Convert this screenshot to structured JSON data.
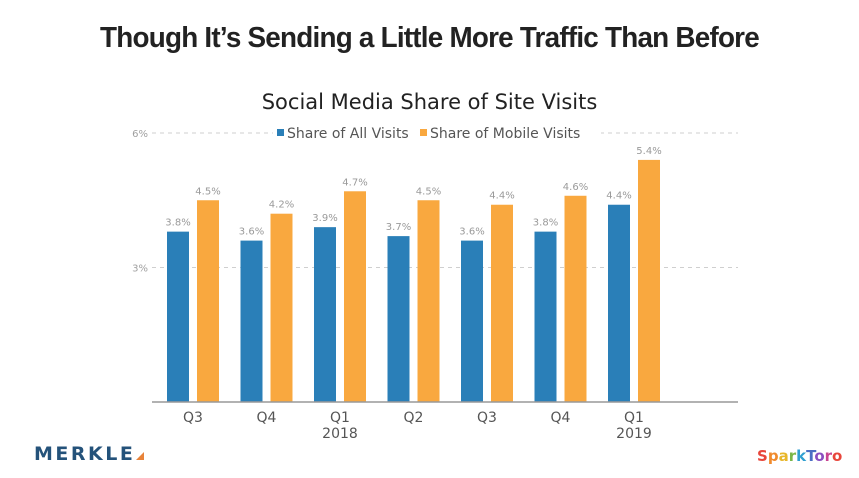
{
  "headline": "Though It’s Sending a Little More Traffic Than Before",
  "chart_data": {
    "type": "bar",
    "title": "Social Media Share of Site Visits",
    "xlabel": "",
    "ylabel": "",
    "ylim": [
      0,
      6
    ],
    "yticks": [
      {
        "value": 3,
        "label": "3%"
      },
      {
        "value": 6,
        "label": "6%"
      }
    ],
    "grid": true,
    "legend_position": "top-center",
    "categories": [
      {
        "label": "Q3",
        "sublabel": ""
      },
      {
        "label": "Q4",
        "sublabel": ""
      },
      {
        "label": "Q1",
        "sublabel": "2018"
      },
      {
        "label": "Q2",
        "sublabel": ""
      },
      {
        "label": "Q3",
        "sublabel": ""
      },
      {
        "label": "Q4",
        "sublabel": ""
      },
      {
        "label": "Q1",
        "sublabel": "2019"
      }
    ],
    "series": [
      {
        "name": "Share of All Visits",
        "color": "#2a7fb8",
        "values": [
          3.8,
          3.6,
          3.9,
          3.7,
          3.6,
          3.8,
          4.4
        ],
        "labels": [
          "3.8%",
          "3.6%",
          "3.9%",
          "3.7%",
          "3.6%",
          "3.8%",
          "4.4%"
        ]
      },
      {
        "name": "Share of Mobile Visits",
        "color": "#f9a83f",
        "values": [
          4.5,
          4.2,
          4.7,
          4.5,
          4.4,
          4.6,
          5.4
        ],
        "labels": [
          "4.5%",
          "4.2%",
          "4.7%",
          "4.5%",
          "4.4%",
          "4.6%",
          "5.4%"
        ]
      }
    ]
  },
  "logos": {
    "merkle": "MERKLE",
    "sparktoro": "SparkToro",
    "sparktoro_colors": [
      "#e8463b",
      "#f08a2c",
      "#e8b62a",
      "#7ab648",
      "#2f9fd0",
      "#4b6fc4",
      "#8a4fc0",
      "#c94591",
      "#e8463b"
    ]
  }
}
